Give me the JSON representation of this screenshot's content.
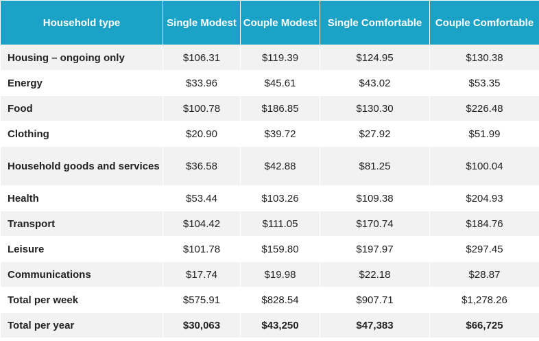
{
  "table": {
    "headers": [
      "Household type",
      "Single Modest",
      "Couple Modest",
      "Single Comfortable",
      "Couple Comfortable"
    ],
    "rows": [
      {
        "label": "Housing – ongoing only",
        "values": [
          "$106.31",
          "$119.39",
          "$124.95",
          "$130.38"
        ]
      },
      {
        "label": "Energy",
        "values": [
          "$33.96",
          "$45.61",
          "$43.02",
          "$53.35"
        ]
      },
      {
        "label": "Food",
        "values": [
          "$100.78",
          "$186.85",
          "$130.30",
          "$226.48"
        ]
      },
      {
        "label": "Clothing",
        "values": [
          "$20.90",
          "$39.72",
          "$27.92",
          "$51.99"
        ]
      },
      {
        "label": "Household goods and services",
        "values": [
          "$36.58",
          "$42.88",
          "$81.25",
          "$100.04"
        ]
      },
      {
        "label": "Health",
        "values": [
          "$53.44",
          "$103.26",
          "$109.38",
          "$204.93"
        ]
      },
      {
        "label": "Transport",
        "values": [
          "$104.42",
          "$111.05",
          "$170.74",
          "$184.76"
        ]
      },
      {
        "label": "Leisure",
        "values": [
          "$101.78",
          "$159.80",
          "$197.97",
          "$297.45"
        ]
      },
      {
        "label": "Communications",
        "values": [
          "$17.74",
          "$19.98",
          "$22.18",
          "$28.87"
        ]
      },
      {
        "label": "Total per week",
        "values": [
          "$575.91",
          "$828.54",
          "$907.71",
          "$1,278.26"
        ]
      },
      {
        "label": "Total per year",
        "values": [
          "$30,063",
          "$43,250",
          "$47,383",
          "$66,725"
        ]
      }
    ]
  },
  "colors": {
    "header_bg": "#1aa3c7",
    "header_text": "#ffffff",
    "stripe": "#f2f2f2"
  }
}
